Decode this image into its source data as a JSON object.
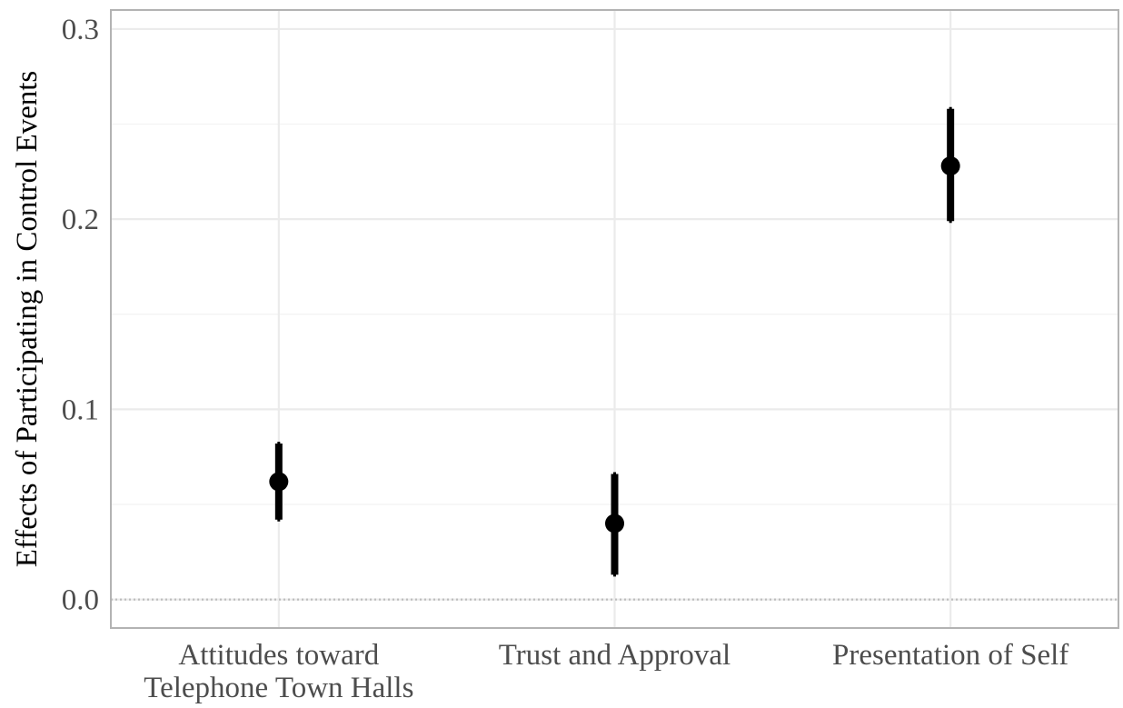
{
  "chart_data": {
    "type": "pointrange",
    "title": "",
    "xlabel": "",
    "ylabel": "Effects of Participating in Control Events",
    "categories": [
      [
        "Attitudes toward",
        "Telephone Town Halls"
      ],
      [
        "Trust and Approval"
      ],
      [
        "Presentation of Self"
      ]
    ],
    "estimates": [
      0.062,
      0.04,
      0.228
    ],
    "ci_lower": [
      0.042,
      0.013,
      0.199
    ],
    "ci_upper": [
      0.082,
      0.066,
      0.258
    ],
    "ylim": [
      -0.015,
      0.31
    ],
    "yticks": [
      0.0,
      0.1,
      0.2,
      0.3
    ],
    "ytick_labels": [
      "0.0",
      "0.1",
      "0.2",
      "0.3"
    ],
    "reference_line": 0.0,
    "grid": true,
    "colors": {
      "point": "#000000",
      "reference_line": "#bdbdbd",
      "panel_border": "#b3b3b3"
    }
  }
}
